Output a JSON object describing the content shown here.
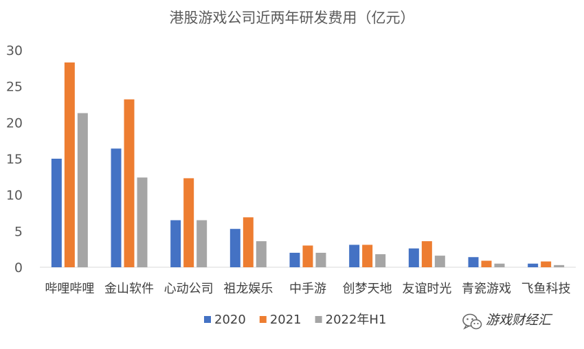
{
  "chart_data": {
    "type": "bar",
    "title": "港股游戏公司近两年研发费用（亿元）",
    "categories": [
      "哔哩哔哩",
      "金山软件",
      "心动公司",
      "祖龙娱乐",
      "中手游",
      "创梦天地",
      "友谊时光",
      "青瓷游戏",
      "飞鱼科技"
    ],
    "series": [
      {
        "name": "2020",
        "color": "#4472C4",
        "values": [
          15.0,
          16.4,
          6.5,
          5.3,
          2.0,
          3.1,
          2.6,
          1.4,
          0.5
        ]
      },
      {
        "name": "2021",
        "color": "#ED7D31",
        "values": [
          28.3,
          23.2,
          12.3,
          6.9,
          3.0,
          3.1,
          3.6,
          0.9,
          0.8
        ]
      },
      {
        "name": "2022年H1",
        "color": "#A5A5A5",
        "values": [
          21.3,
          12.4,
          6.5,
          3.6,
          2.0,
          1.8,
          1.6,
          0.5,
          0.3
        ]
      }
    ],
    "yticks": [
      0,
      5,
      10,
      15,
      20,
      25,
      30
    ],
    "ylim": [
      0,
      30
    ],
    "grid": false,
    "legend_position": "bottom-center"
  },
  "watermark": {
    "text": "游戏财经汇",
    "icon": "wechat-logo-icon"
  }
}
